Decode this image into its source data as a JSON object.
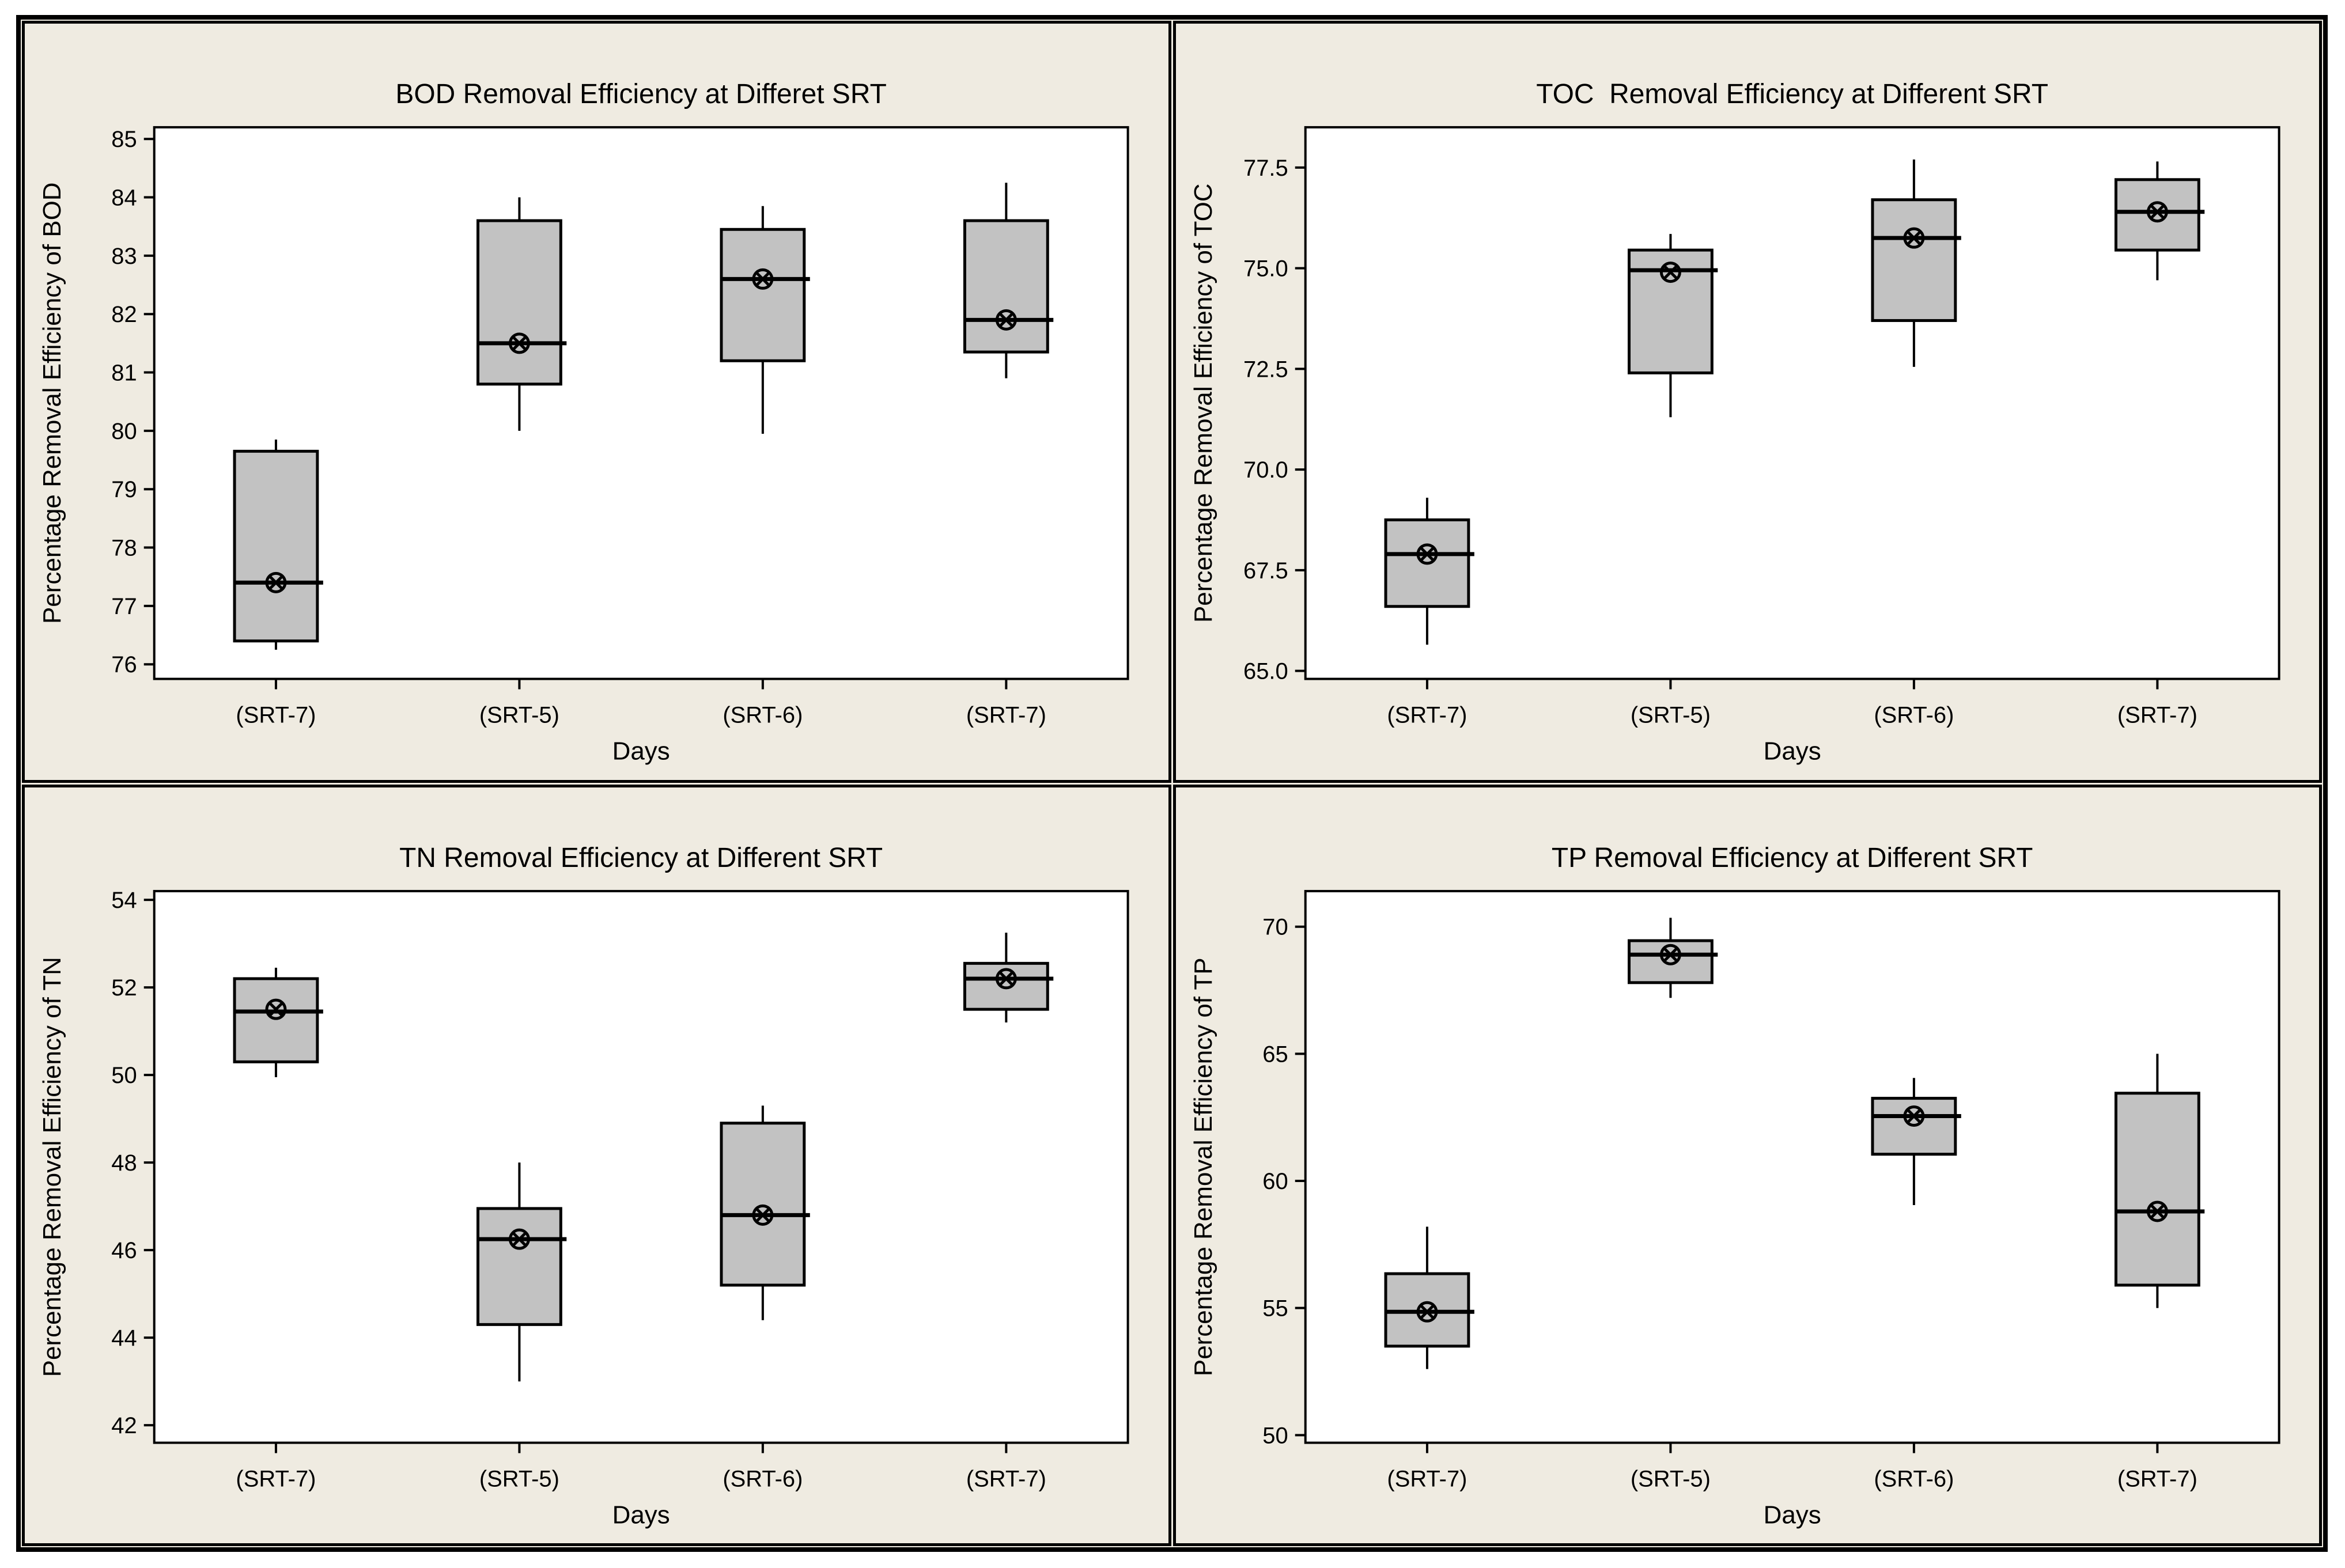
{
  "figure": {
    "background": "#FFFFFF",
    "panel_background": "#EFEBE1",
    "plot_background": "#FFFFFF",
    "box_fill": "#C2C2C2",
    "line_color": "#000000",
    "text_color": "#000000"
  },
  "chart_data": [
    {
      "id": "bod",
      "type": "box",
      "title": "BOD Removal Efficiency at Differet SRT",
      "xlabel": "Days",
      "ylabel": "Percentage Removal Efficiency of BOD",
      "categories": [
        "(SRT-7)",
        "(SRT-5)",
        "(SRT-6)",
        "(SRT-7)"
      ],
      "ylim": [
        75.75,
        85.2
      ],
      "yticks": [
        76,
        77,
        78,
        79,
        80,
        81,
        82,
        83,
        84,
        85
      ],
      "ytick_labels": [
        "76",
        "77",
        "78",
        "79",
        "80",
        "81",
        "82",
        "83",
        "84",
        "85"
      ],
      "grid": false,
      "legend": null,
      "boxes": [
        {
          "whislo": 76.25,
          "q1": 76.4,
          "med": 77.4,
          "q3": 79.65,
          "whishi": 79.85,
          "mean": 77.4
        },
        {
          "whislo": 80.0,
          "q1": 80.8,
          "med": 81.5,
          "q3": 83.6,
          "whishi": 84.0,
          "mean": 81.5
        },
        {
          "whislo": 79.95,
          "q1": 81.2,
          "med": 82.6,
          "q3": 83.45,
          "whishi": 83.85,
          "mean": 82.6
        },
        {
          "whislo": 80.9,
          "q1": 81.35,
          "med": 81.9,
          "q3": 83.6,
          "whishi": 84.25,
          "mean": 81.9
        }
      ]
    },
    {
      "id": "toc",
      "type": "box",
      "title": "TOC  Removal Efficiency at Different SRT",
      "xlabel": "Days",
      "ylabel": "Percentage Removal Efficiency of TOC",
      "categories": [
        "(SRT-7)",
        "(SRT-5)",
        "(SRT-6)",
        "(SRT-7)"
      ],
      "ylim": [
        64.8,
        78.5
      ],
      "yticks": [
        65.0,
        67.5,
        70.0,
        72.5,
        75.0,
        77.5
      ],
      "ytick_labels": [
        "65.0",
        "67.5",
        "70.0",
        "72.5",
        "75.0",
        "77.5"
      ],
      "grid": false,
      "legend": null,
      "boxes": [
        {
          "whislo": 65.65,
          "q1": 66.6,
          "med": 67.9,
          "q3": 68.75,
          "whishi": 69.3,
          "mean": 67.9
        },
        {
          "whislo": 71.3,
          "q1": 72.4,
          "med": 74.95,
          "q3": 75.45,
          "whishi": 75.85,
          "mean": 74.9
        },
        {
          "whislo": 72.55,
          "q1": 73.7,
          "med": 75.75,
          "q3": 76.7,
          "whishi": 77.7,
          "mean": 75.75
        },
        {
          "whislo": 74.7,
          "q1": 75.45,
          "med": 76.4,
          "q3": 77.2,
          "whishi": 77.65,
          "mean": 76.4
        }
      ]
    },
    {
      "id": "tn",
      "type": "box",
      "title": "TN Removal Efficiency at Different SRT",
      "xlabel": "Days",
      "ylabel": "Percentage Removal Efficiency of TN",
      "categories": [
        "(SRT-7)",
        "(SRT-5)",
        "(SRT-6)",
        "(SRT-7)"
      ],
      "ylim": [
        41.6,
        54.2
      ],
      "yticks": [
        42,
        44,
        46,
        48,
        50,
        52,
        54
      ],
      "ytick_labels": [
        "42",
        "44",
        "46",
        "48",
        "50",
        "52",
        "54"
      ],
      "grid": false,
      "legend": null,
      "boxes": [
        {
          "whislo": 49.95,
          "q1": 50.3,
          "med": 51.45,
          "q3": 52.2,
          "whishi": 52.45,
          "mean": 51.5
        },
        {
          "whislo": 43.0,
          "q1": 44.3,
          "med": 46.25,
          "q3": 46.95,
          "whishi": 48.0,
          "mean": 46.25
        },
        {
          "whislo": 44.4,
          "q1": 45.2,
          "med": 46.8,
          "q3": 48.9,
          "whishi": 49.3,
          "mean": 46.8
        },
        {
          "whislo": 51.2,
          "q1": 51.5,
          "med": 52.2,
          "q3": 52.55,
          "whishi": 53.25,
          "mean": 52.2
        }
      ]
    },
    {
      "id": "tp",
      "type": "box",
      "title": "TP Removal Efficiency at Different SRT",
      "xlabel": "Days",
      "ylabel": "Percentage Removal Efficiency of TP",
      "categories": [
        "(SRT-7)",
        "(SRT-5)",
        "(SRT-6)",
        "(SRT-7)"
      ],
      "ylim": [
        49.7,
        71.4
      ],
      "yticks": [
        50,
        55,
        60,
        65,
        70
      ],
      "ytick_labels": [
        "50",
        "55",
        "60",
        "65",
        "70"
      ],
      "grid": false,
      "legend": null,
      "boxes": [
        {
          "whislo": 52.6,
          "q1": 53.5,
          "med": 54.85,
          "q3": 56.35,
          "whishi": 58.2,
          "mean": 54.85
        },
        {
          "whislo": 67.2,
          "q1": 67.8,
          "med": 68.9,
          "q3": 69.45,
          "whishi": 70.35,
          "mean": 68.9
        },
        {
          "whislo": 59.05,
          "q1": 61.05,
          "med": 62.55,
          "q3": 63.25,
          "whishi": 64.05,
          "mean": 62.55
        },
        {
          "whislo": 55.0,
          "q1": 55.9,
          "med": 58.8,
          "q3": 63.45,
          "whishi": 65.0,
          "mean": 58.8
        }
      ]
    }
  ]
}
